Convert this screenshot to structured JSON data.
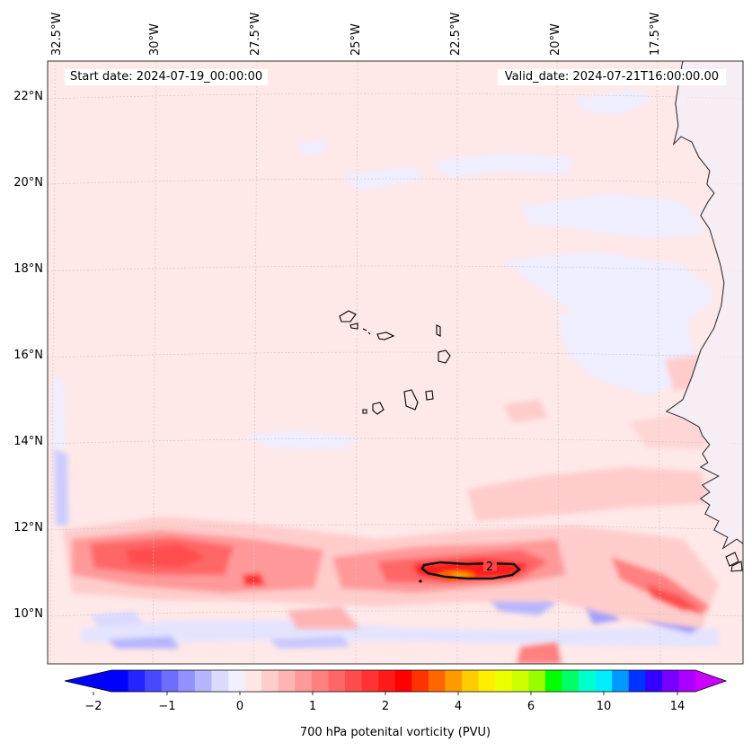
{
  "map": {
    "start_date_label": "Start date: 2024-07-19_00:00:00",
    "valid_date_label": "Valid_date: 2024-07-21T16:00:00.00",
    "longitude_labels": [
      "32.5°W",
      "30°W",
      "27.5°W",
      "25°W",
      "22.5°W",
      "20°W",
      "17.5°W"
    ],
    "latitude_labels": [
      "22°N",
      "20°N",
      "18°N",
      "16°N",
      "14°N",
      "12°N",
      "10°N"
    ],
    "contour_label": "2",
    "region": "Cabo Verde Islands and West African coast"
  },
  "colorbar": {
    "title": "700 hPa potenital vorticity (PVU)",
    "tick_labels": [
      "−2",
      "−1",
      "0",
      "1",
      "2",
      "4",
      "6",
      "10",
      "14"
    ],
    "colors": [
      "#0000ff",
      "#2424ff",
      "#4848ff",
      "#6d6dff",
      "#9191ff",
      "#b6b6ff",
      "#dadaff",
      "#f0f0ff",
      "#ffe6e6",
      "#ffcccc",
      "#ffb3b3",
      "#ff9999",
      "#ff8080",
      "#ff6666",
      "#ff4d4d",
      "#ff3333",
      "#ff1a1a",
      "#ff0000",
      "#ff3300",
      "#ff6600",
      "#ff9900",
      "#ffcc00",
      "#ffee00",
      "#eeff00",
      "#ccff00",
      "#99ff00",
      "#00ff00",
      "#00ff66",
      "#00ffcc",
      "#00eeff",
      "#0099ff",
      "#0033ff",
      "#3300ff",
      "#7700ff",
      "#aa00ff"
    ],
    "extend_low_color": "#0000ff",
    "extend_high_color": "#cc00ff"
  }
}
